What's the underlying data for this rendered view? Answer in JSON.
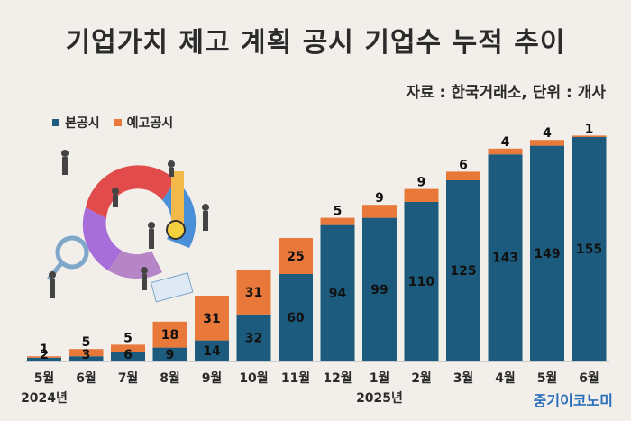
{
  "chart_data": {
    "type": "bar",
    "stacked": true,
    "title": "기업가치 제고 계획 공시 기업수 누적 추이",
    "source": "자료 : 한국거래소, 단위 : 개사",
    "categories": [
      "5월",
      "6월",
      "7월",
      "8월",
      "9월",
      "10월",
      "11월",
      "12월",
      "1월",
      "2월",
      "3월",
      "4월",
      "5월",
      "6월"
    ],
    "year_labels": [
      {
        "label": "2024년",
        "index": 0
      },
      {
        "label": "2025년",
        "index": 8
      }
    ],
    "series": [
      {
        "name": "본공시",
        "color": "#1c5b7e",
        "values": [
          2,
          3,
          6,
          9,
          14,
          32,
          60,
          94,
          99,
          110,
          125,
          143,
          149,
          155
        ]
      },
      {
        "name": "예고공시",
        "color": "#e9793a",
        "values": [
          1,
          5,
          5,
          18,
          31,
          31,
          25,
          5,
          9,
          9,
          6,
          4,
          4,
          1
        ]
      }
    ],
    "ylim": [
      0,
      165
    ],
    "legend_position": "top-left"
  },
  "brand": "중기이코노미",
  "illustration": "business-people-with-pie-chart-illustration"
}
